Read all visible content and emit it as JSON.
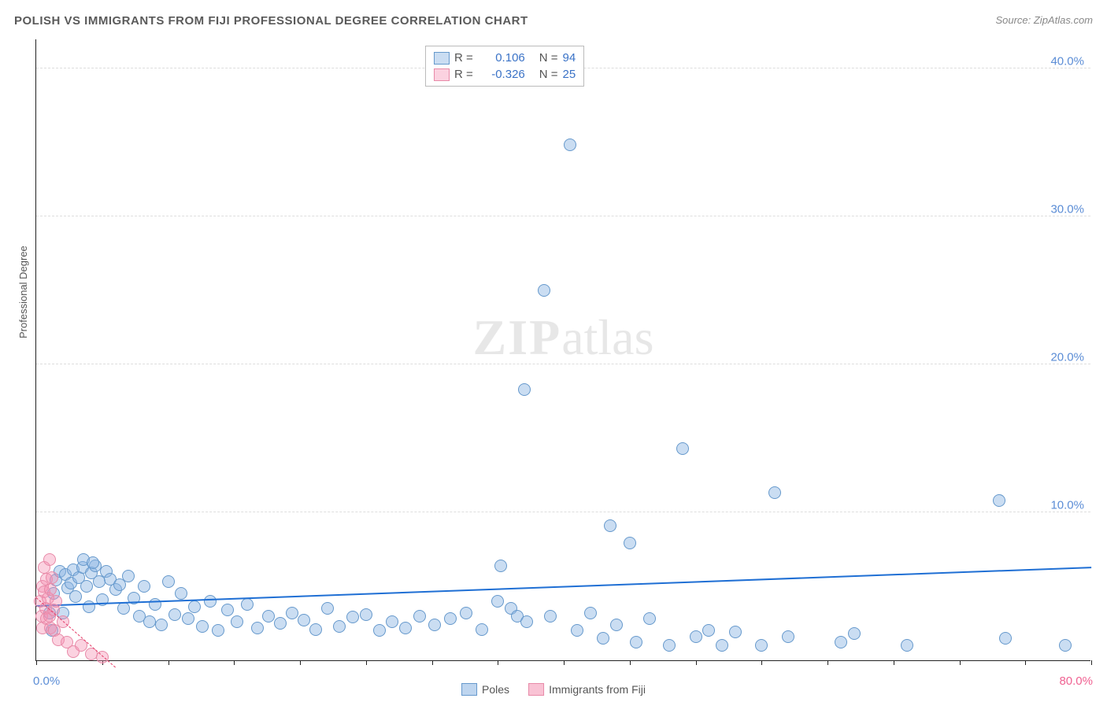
{
  "title": "POLISH VS IMMIGRANTS FROM FIJI PROFESSIONAL DEGREE CORRELATION CHART",
  "source": "Source: ZipAtlas.com",
  "ylabel": "Professional Degree",
  "watermark_zip": "ZIP",
  "watermark_atlas": "atlas",
  "chart": {
    "type": "scatter",
    "xlim": [
      0,
      80
    ],
    "ylim": [
      0,
      42
    ],
    "xtick_min_label": "0.0%",
    "xtick_max_label": "80.0%",
    "xticks": [
      0,
      5,
      10,
      15,
      20,
      25,
      30,
      35,
      40,
      45,
      50,
      55,
      60,
      65,
      70,
      75,
      80
    ],
    "yticks": [
      {
        "v": 10,
        "label": "10.0%"
      },
      {
        "v": 20,
        "label": "20.0%"
      },
      {
        "v": 30,
        "label": "30.0%"
      },
      {
        "v": 40,
        "label": "40.0%"
      }
    ],
    "background_color": "#ffffff",
    "grid_color": "#dddddd",
    "series": [
      {
        "name": "Poles",
        "marker_color_fill": "rgba(137,179,226,0.45)",
        "marker_color_stroke": "#6699cc",
        "marker_radius": 8,
        "trend_color": "#1f6fd4",
        "trend_width": 2,
        "trend_dashed": false,
        "trend": {
          "x1": 0,
          "y1": 3.6,
          "x2": 80,
          "y2": 6.2
        },
        "R_label": "R =",
        "R_value": "0.106",
        "N_label": "N =",
        "N_value": "94",
        "points": [
          [
            1.0,
            3.2
          ],
          [
            1.2,
            2.0
          ],
          [
            1.3,
            4.5
          ],
          [
            1.5,
            5.4
          ],
          [
            1.8,
            6.0
          ],
          [
            2.0,
            3.2
          ],
          [
            2.2,
            5.8
          ],
          [
            2.4,
            4.9
          ],
          [
            2.6,
            5.2
          ],
          [
            2.8,
            6.1
          ],
          [
            3.0,
            4.3
          ],
          [
            3.2,
            5.6
          ],
          [
            3.5,
            6.3
          ],
          [
            3.8,
            5.0
          ],
          [
            4.0,
            3.6
          ],
          [
            4.2,
            5.9
          ],
          [
            4.5,
            6.4
          ],
          [
            4.8,
            5.3
          ],
          [
            5.0,
            4.1
          ],
          [
            5.3,
            6.0
          ],
          [
            5.6,
            5.5
          ],
          [
            6.0,
            4.8
          ],
          [
            6.3,
            5.1
          ],
          [
            6.6,
            3.5
          ],
          [
            7.0,
            5.7
          ],
          [
            7.4,
            4.2
          ],
          [
            7.8,
            3.0
          ],
          [
            8.2,
            5.0
          ],
          [
            8.6,
            2.6
          ],
          [
            9.0,
            3.8
          ],
          [
            9.5,
            2.4
          ],
          [
            10.0,
            5.3
          ],
          [
            10.5,
            3.1
          ],
          [
            11.0,
            4.5
          ],
          [
            11.5,
            2.8
          ],
          [
            12.0,
            3.6
          ],
          [
            12.6,
            2.3
          ],
          [
            13.2,
            4.0
          ],
          [
            13.8,
            2.0
          ],
          [
            14.5,
            3.4
          ],
          [
            15.2,
            2.6
          ],
          [
            16.0,
            3.8
          ],
          [
            16.8,
            2.2
          ],
          [
            17.6,
            3.0
          ],
          [
            18.5,
            2.5
          ],
          [
            19.4,
            3.2
          ],
          [
            20.3,
            2.7
          ],
          [
            21.2,
            2.1
          ],
          [
            22.1,
            3.5
          ],
          [
            23.0,
            2.3
          ],
          [
            24.0,
            2.9
          ],
          [
            25.0,
            3.1
          ],
          [
            26.0,
            2.0
          ],
          [
            27.0,
            2.6
          ],
          [
            28.0,
            2.2
          ],
          [
            29.1,
            3.0
          ],
          [
            30.2,
            2.4
          ],
          [
            31.4,
            2.8
          ],
          [
            32.6,
            3.2
          ],
          [
            33.8,
            2.1
          ],
          [
            35.0,
            4.0
          ],
          [
            35.2,
            6.4
          ],
          [
            36.0,
            3.5
          ],
          [
            36.5,
            3.0
          ],
          [
            37.0,
            18.3
          ],
          [
            37.2,
            2.6
          ],
          [
            38.5,
            25.0
          ],
          [
            39.0,
            3.0
          ],
          [
            40.5,
            34.8
          ],
          [
            41.0,
            2.0
          ],
          [
            42.0,
            3.2
          ],
          [
            43.0,
            1.5
          ],
          [
            43.5,
            9.1
          ],
          [
            44.0,
            2.4
          ],
          [
            45.0,
            7.9
          ],
          [
            45.5,
            1.2
          ],
          [
            46.5,
            2.8
          ],
          [
            48.0,
            1.0
          ],
          [
            49.0,
            14.3
          ],
          [
            50.0,
            1.6
          ],
          [
            51.0,
            2.0
          ],
          [
            52.0,
            1.0
          ],
          [
            53.0,
            1.9
          ],
          [
            55.0,
            1.0
          ],
          [
            56.0,
            11.3
          ],
          [
            57.0,
            1.6
          ],
          [
            61.0,
            1.2
          ],
          [
            62.0,
            1.8
          ],
          [
            66.0,
            1.0
          ],
          [
            73.0,
            10.8
          ],
          [
            73.5,
            1.5
          ],
          [
            78.0,
            1.0
          ],
          [
            3.6,
            6.8
          ],
          [
            4.3,
            6.6
          ]
        ]
      },
      {
        "name": "Immigrants from Fiji",
        "marker_color_fill": "rgba(244,143,177,0.40)",
        "marker_color_stroke": "#e88aa8",
        "marker_radius": 8,
        "trend_color": "#e53965",
        "trend_width": 1.5,
        "trend_dashed": true,
        "trend": {
          "x1": 0,
          "y1": 4.2,
          "x2": 6,
          "y2": -0.5
        },
        "R_label": "R =",
        "R_value": "-0.326",
        "N_label": "N =",
        "N_value": "25",
        "points": [
          [
            0.3,
            4.0
          ],
          [
            0.4,
            3.0
          ],
          [
            0.5,
            5.0
          ],
          [
            0.5,
            2.2
          ],
          [
            0.6,
            4.6
          ],
          [
            0.6,
            6.3
          ],
          [
            0.7,
            3.5
          ],
          [
            0.8,
            5.5
          ],
          [
            0.8,
            2.8
          ],
          [
            0.9,
            4.2
          ],
          [
            1.0,
            6.8
          ],
          [
            1.0,
            3.0
          ],
          [
            1.1,
            2.2
          ],
          [
            1.1,
            4.8
          ],
          [
            1.2,
            5.6
          ],
          [
            1.3,
            3.4
          ],
          [
            1.4,
            2.0
          ],
          [
            1.5,
            4.0
          ],
          [
            1.7,
            1.4
          ],
          [
            2.0,
            2.6
          ],
          [
            2.3,
            1.2
          ],
          [
            2.8,
            0.6
          ],
          [
            3.4,
            1.0
          ],
          [
            4.2,
            0.4
          ],
          [
            5.0,
            0.2
          ]
        ]
      }
    ]
  },
  "bottom_legend": {
    "items": [
      {
        "label": "Poles",
        "fill": "rgba(137,179,226,0.55)",
        "stroke": "#6699cc"
      },
      {
        "label": "Immigrants from Fiji",
        "fill": "rgba(244,143,177,0.55)",
        "stroke": "#e88aa8"
      }
    ]
  },
  "colors": {
    "title": "#5a5a5a",
    "axis_tick_label": "#5b8dd6",
    "axis_tick_label_max": "#f06292",
    "legend_value_blue": "#3b73c7",
    "legend_value_pink": "#e53965",
    "legend_label": "#555555"
  },
  "typography": {
    "title_fontsize": 15,
    "tick_fontsize": 15,
    "legend_fontsize": 15,
    "ylabel_fontsize": 13
  }
}
